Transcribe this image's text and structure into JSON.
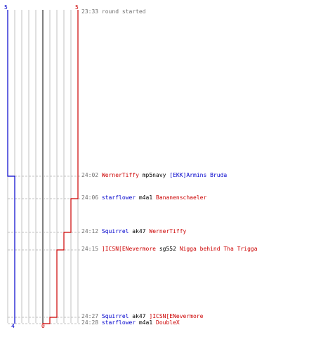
{
  "colors": {
    "blue": "#0000cc",
    "red": "#cc0000",
    "grid": "#c0c0c0",
    "center": "#555555",
    "dash": "#b0b0b0"
  },
  "counts": {
    "blue_start": "5",
    "red_start": "5",
    "blue_end": "4",
    "red_end": "0"
  },
  "events": [
    {
      "time": "23:33",
      "type": "info",
      "text": "round started"
    },
    {
      "time": "24:02",
      "killer": "WernerTiffy",
      "killer_team": "red",
      "weapon": "mp5navy",
      "victim": "[EKK]Armins Bruda",
      "victim_team": "blue"
    },
    {
      "time": "24:06",
      "killer": "starflower",
      "killer_team": "blue",
      "weapon": "m4a1",
      "victim": "Bananenschaeler",
      "victim_team": "red"
    },
    {
      "time": "24:12",
      "killer": "Squirrel",
      "killer_team": "blue",
      "weapon": "ak47",
      "victim": "WernerTiffy",
      "victim_team": "red"
    },
    {
      "time": "24:15",
      "killer": "]ICSN[ENevermore",
      "killer_team": "red",
      "weapon": "sg552",
      "victim": "Nigga behind Tha Trigga",
      "victim_team": "red"
    },
    {
      "time": "24:27",
      "killer": "Squirrel",
      "killer_team": "blue",
      "weapon": "ak47",
      "victim": "]ICSN[ENevermore",
      "victim_team": "red"
    },
    {
      "time": "24:28",
      "killer": "starflower",
      "killer_team": "blue",
      "weapon": "m4a1",
      "victim": "DoubleX",
      "victim_team": "red"
    }
  ],
  "chart_data": {
    "type": "line",
    "title": "",
    "xlabel": "",
    "ylabel": "",
    "max_players": 5,
    "series": [
      {
        "team": "blue",
        "values": [
          5,
          4,
          4,
          4,
          4,
          4,
          4
        ]
      },
      {
        "team": "red",
        "values": [
          5,
          5,
          4,
          3,
          2,
          1,
          0
        ]
      }
    ]
  }
}
